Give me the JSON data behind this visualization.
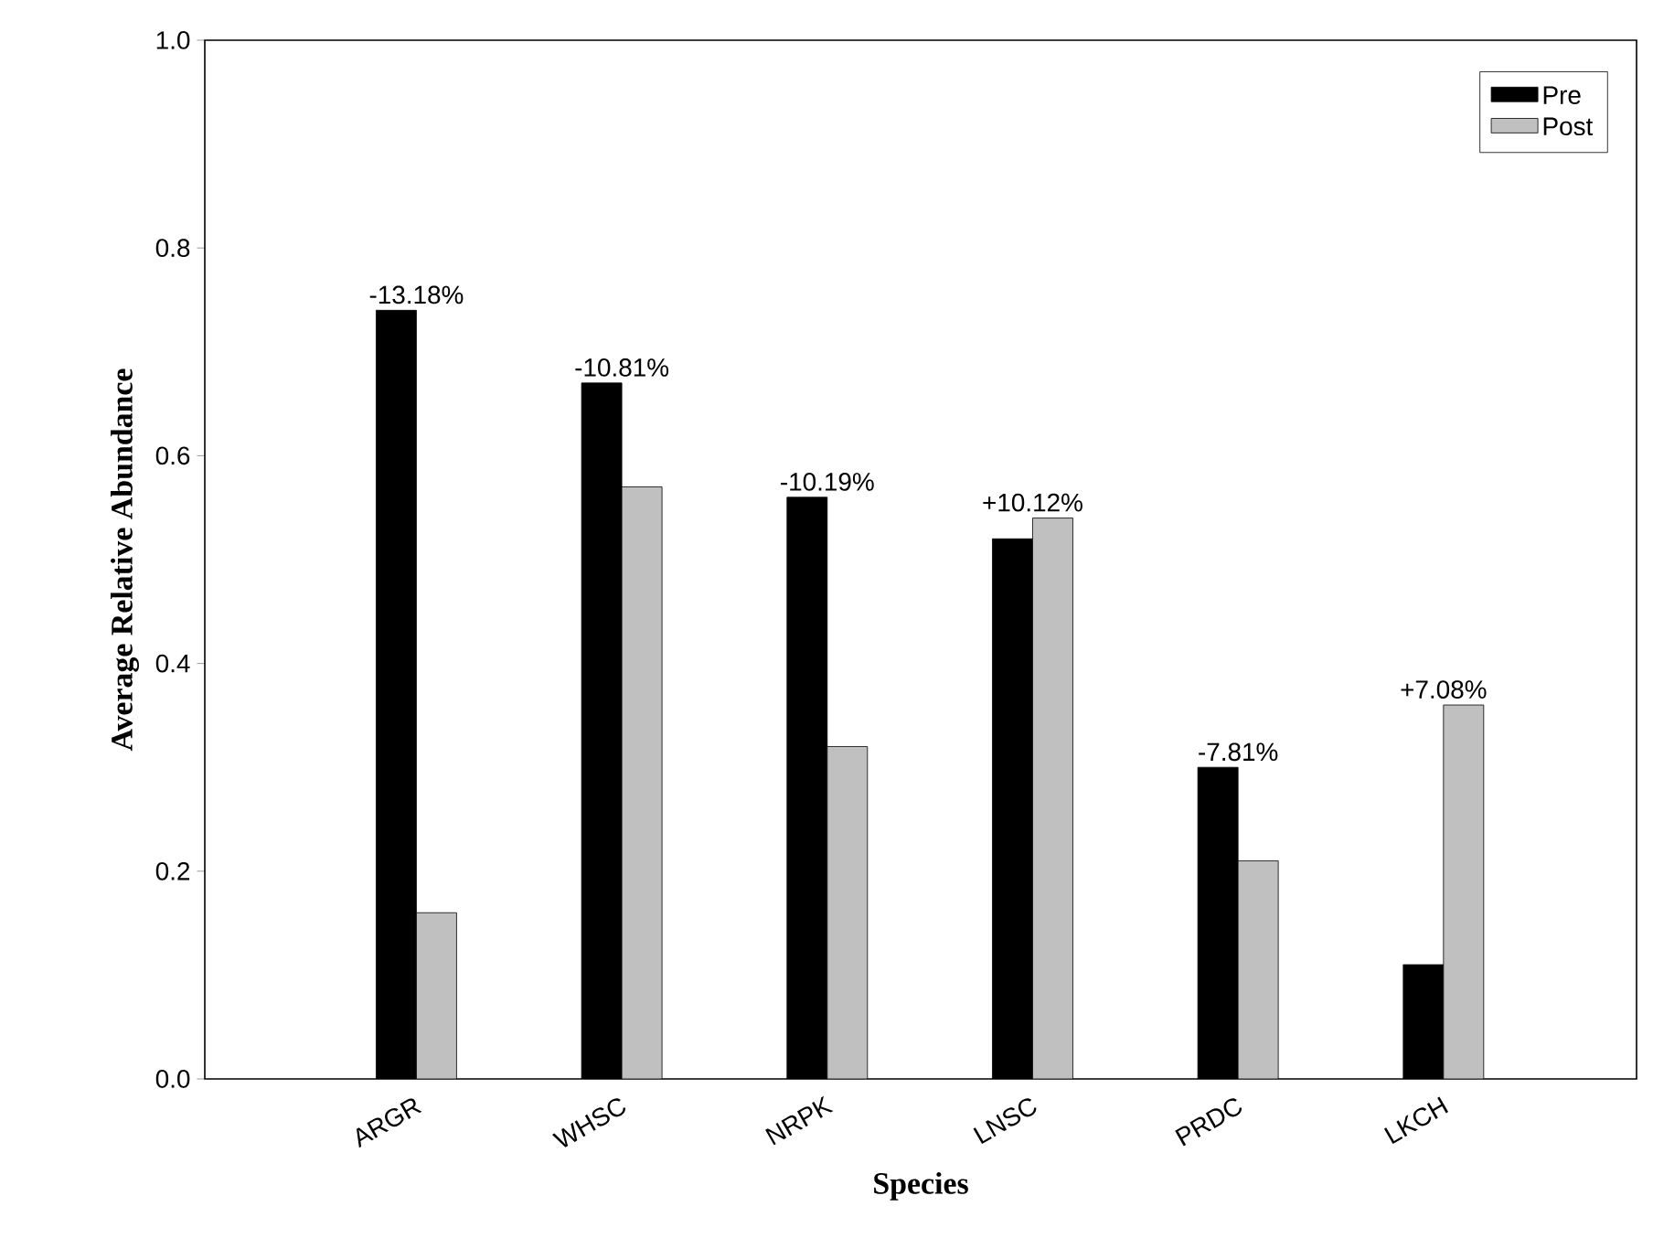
{
  "chart_data": {
    "type": "bar",
    "xlabel": "Species",
    "ylabel": "Average Relative Abundance",
    "categories": [
      "ARGR",
      "WHSC",
      "NRPK",
      "LNSC",
      "PRDC",
      "LKCH"
    ],
    "series": [
      {
        "name": "Pre",
        "color": "#000000",
        "values": [
          0.74,
          0.67,
          0.56,
          0.52,
          0.3,
          0.11
        ]
      },
      {
        "name": "Post",
        "color": "#c0c0c0",
        "values": [
          0.16,
          0.57,
          0.32,
          0.54,
          0.21,
          0.36
        ]
      }
    ],
    "ylim": [
      0,
      1
    ],
    "yticks": [
      {
        "value": 0,
        "label": "0.0"
      },
      {
        "value": 0.2,
        "label": "0.2"
      },
      {
        "value": 0.4,
        "label": "0.4"
      },
      {
        "value": 0.6,
        "label": "0.6"
      },
      {
        "value": 0.8,
        "label": "0.8"
      },
      {
        "value": 1,
        "label": "1.0"
      }
    ],
    "grid": false,
    "legend": "top right",
    "annotations": [
      "-13.18%",
      "-10.81%",
      "-10.19%",
      "+10.12%",
      "-7.81%",
      "+7.08%"
    ]
  }
}
